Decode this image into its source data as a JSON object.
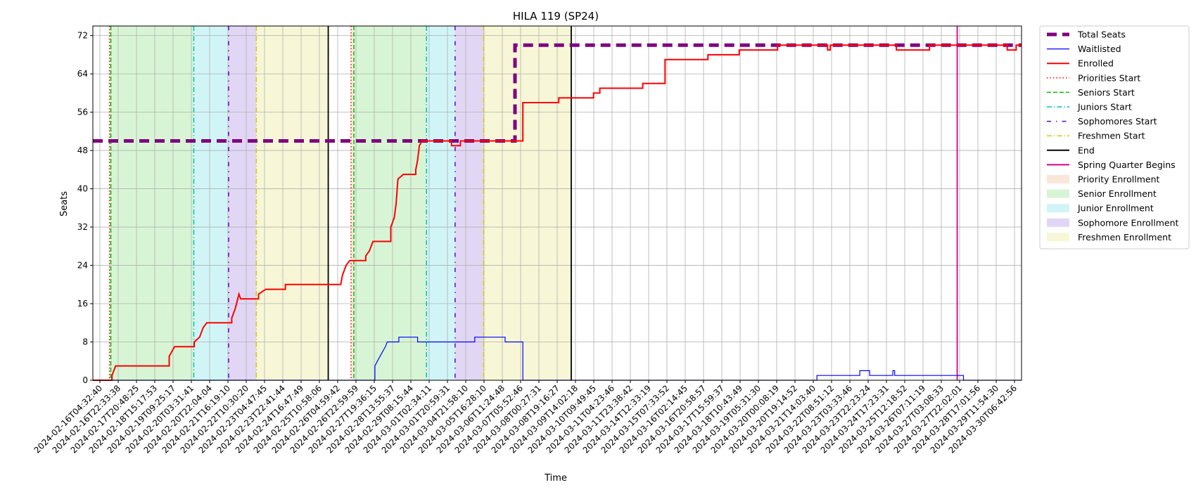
{
  "chart_data": {
    "type": "line",
    "title": "HILA 119 (SP24)",
    "xlabel": "Time",
    "ylabel": "Seats",
    "ylim": [
      0,
      74
    ],
    "yticks": [
      0,
      8,
      16,
      24,
      32,
      40,
      48,
      56,
      64,
      72
    ],
    "grid": true,
    "legend_position": "outside-right",
    "x_axis_start": "2024-02-16T04:32:40",
    "x_axis_end": "2024-03-30T12:00:00",
    "x_tick_labels": [
      "2024-02-16T04:32:40",
      "2024-02-16T22:33:38",
      "2024-02-17T20:48:25",
      "2024-02-18T15:17:53",
      "2024-02-19T09:25:17",
      "2024-02-20T03:31:41",
      "2024-02-20T22:04:04",
      "2024-02-21T16:19:10",
      "2024-02-22T10:30:20",
      "2024-02-23T04:47:45",
      "2024-02-23T22:41:44",
      "2024-02-24T16:47:49",
      "2024-02-25T10:58:06",
      "2024-02-26T04:59:42",
      "2024-02-26T22:59:59",
      "2024-02-27T19:36:15",
      "2024-02-28T13:55:37",
      "2024-02-29T08:15:44",
      "2024-03-01T02:34:11",
      "2024-03-01T20:59:31",
      "2024-03-04T21:58:10",
      "2024-03-05T16:28:10",
      "2024-03-06T11:24:48",
      "2024-03-07T05:52:46",
      "2024-03-08T00:27:31",
      "2024-03-08T19:16:27",
      "2024-03-09T14:02:18",
      "2024-03-10T09:49:45",
      "2024-03-11T04:23:46",
      "2024-03-11T23:38:42",
      "2024-03-14T12:33:19",
      "2024-03-15T07:33:52",
      "2024-03-16T02:14:45",
      "2024-03-16T20:58:57",
      "2024-03-17T15:59:37",
      "2024-03-18T10:43:49",
      "2024-03-19T05:31:30",
      "2024-03-20T00:08:19",
      "2024-03-20T19:14:52",
      "2024-03-21T14:03:40",
      "2024-03-22T08:51:12",
      "2024-03-23T03:33:46",
      "2024-03-23T22:23:24",
      "2024-03-24T17:23:31",
      "2024-03-25T12:18:52",
      "2024-03-26T07:11:19",
      "2024-03-27T03:08:33",
      "2024-03-27T22:02:01",
      "2024-03-28T17:01:56",
      "2024-03-29T11:54:30",
      "2024-03-30T06:42:56"
    ],
    "series": [
      {
        "name": "Total Seats",
        "color": "#800080",
        "style": "dashed-thick",
        "points": [
          [
            "2024-02-16T04:32:40",
            50
          ],
          [
            "2024-03-06T21:00:00",
            50
          ],
          [
            "2024-03-06T21:00:00",
            70
          ],
          [
            "2024-03-30T12:00:00",
            70
          ]
        ]
      },
      {
        "name": "Waitlisted",
        "color": "#0000ff",
        "style": "solid-thin",
        "points": [
          [
            "2024-02-16T04:32:40",
            0
          ],
          [
            "2024-02-29T08:15:44",
            0
          ],
          [
            "2024-02-29T08:15:44",
            3
          ],
          [
            "2024-02-29T11:00:00",
            4
          ],
          [
            "2024-02-29T14:00:00",
            5
          ],
          [
            "2024-02-29T17:00:00",
            6
          ],
          [
            "2024-02-29T20:00:00",
            7
          ],
          [
            "2024-02-29T22:00:00",
            8
          ],
          [
            "2024-03-01T11:00:00",
            8
          ],
          [
            "2024-03-01T11:00:00",
            9
          ],
          [
            "2024-03-02T08:00:00",
            9
          ],
          [
            "2024-03-02T08:00:00",
            8
          ],
          [
            "2024-03-05T00:00:00",
            8
          ],
          [
            "2024-03-05T00:00:00",
            9
          ],
          [
            "2024-03-06T10:00:00",
            9
          ],
          [
            "2024-03-06T10:00:00",
            8
          ],
          [
            "2024-03-07T05:52:46",
            8
          ],
          [
            "2024-03-07T05:52:46",
            0
          ],
          [
            "2024-03-20T23:00:00",
            0
          ],
          [
            "2024-03-20T23:00:00",
            1
          ],
          [
            "2024-03-22T23:00:00",
            1
          ],
          [
            "2024-03-22T23:00:00",
            2
          ],
          [
            "2024-03-23T10:00:00",
            2
          ],
          [
            "2024-03-23T10:00:00",
            1
          ],
          [
            "2024-03-24T12:00:00",
            1
          ],
          [
            "2024-03-24T12:00:00",
            2
          ],
          [
            "2024-03-24T14:00:00",
            2
          ],
          [
            "2024-03-24T14:00:00",
            1
          ],
          [
            "2024-03-27T19:00:00",
            1
          ],
          [
            "2024-03-27T19:00:00",
            0
          ],
          [
            "2024-03-30T12:00:00",
            0
          ]
        ]
      },
      {
        "name": "Enrolled",
        "color": "#ff0000",
        "style": "solid",
        "points": [
          [
            "2024-02-16T04:32:40",
            0
          ],
          [
            "2024-02-17T02:00:00",
            0
          ],
          [
            "2024-02-17T02:00:00",
            1
          ],
          [
            "2024-02-17T04:00:00",
            2
          ],
          [
            "2024-02-17T06:00:00",
            3
          ],
          [
            "2024-02-19T18:00:00",
            3
          ],
          [
            "2024-02-19T18:00:00",
            5
          ],
          [
            "2024-02-19T21:00:00",
            6
          ],
          [
            "2024-02-20T00:00:00",
            7
          ],
          [
            "2024-02-20T22:04:04",
            7
          ],
          [
            "2024-02-20T22:04:04",
            8
          ],
          [
            "2024-02-21T04:00:00",
            9
          ],
          [
            "2024-02-21T08:00:00",
            11
          ],
          [
            "2024-02-21T12:00:00",
            12
          ],
          [
            "2024-02-22T16:00:00",
            12
          ],
          [
            "2024-02-22T16:00:00",
            13
          ],
          [
            "2024-02-22T20:00:00",
            15
          ],
          [
            "2024-02-23T00:00:00",
            18
          ],
          [
            "2024-02-23T02:00:00",
            17
          ],
          [
            "2024-02-23T22:00:00",
            17
          ],
          [
            "2024-02-23T22:00:00",
            18
          ],
          [
            "2024-02-24T06:00:00",
            19
          ],
          [
            "2024-02-25T04:00:00",
            19
          ],
          [
            "2024-02-25T04:00:00",
            20
          ],
          [
            "2024-02-27T18:00:00",
            20
          ],
          [
            "2024-02-27T20:00:00",
            22
          ],
          [
            "2024-02-28T00:00:00",
            24
          ],
          [
            "2024-02-28T04:00:00",
            25
          ],
          [
            "2024-02-28T22:00:00",
            25
          ],
          [
            "2024-02-28T22:00:00",
            26
          ],
          [
            "2024-02-29T02:00:00",
            27
          ],
          [
            "2024-02-29T06:00:00",
            29
          ],
          [
            "2024-03-01T02:00:00",
            29
          ],
          [
            "2024-03-01T02:00:00",
            32
          ],
          [
            "2024-03-01T06:00:00",
            34
          ],
          [
            "2024-03-01T08:00:00",
            37
          ],
          [
            "2024-03-01T10:00:00",
            42
          ],
          [
            "2024-03-01T16:00:00",
            43
          ],
          [
            "2024-03-02T06:00:00",
            43
          ],
          [
            "2024-03-02T06:00:00",
            44
          ],
          [
            "2024-03-02T08:00:00",
            46
          ],
          [
            "2024-03-02T10:00:00",
            49
          ],
          [
            "2024-03-02T13:00:00",
            50
          ],
          [
            "2024-03-03T22:00:00",
            50
          ],
          [
            "2024-03-03T22:00:00",
            49
          ],
          [
            "2024-03-04T08:00:00",
            49
          ],
          [
            "2024-03-04T08:00:00",
            50
          ],
          [
            "2024-03-07T05:52:46",
            50
          ],
          [
            "2024-03-07T05:52:46",
            58
          ],
          [
            "2024-03-08T22:00:00",
            58
          ],
          [
            "2024-03-08T22:00:00",
            59
          ],
          [
            "2024-03-10T13:00:00",
            59
          ],
          [
            "2024-03-10T13:00:00",
            60
          ],
          [
            "2024-03-10T20:00:00",
            60
          ],
          [
            "2024-03-10T20:00:00",
            61
          ],
          [
            "2024-03-12T20:00:00",
            61
          ],
          [
            "2024-03-12T20:00:00",
            62
          ],
          [
            "2024-03-13T21:00:00",
            62
          ],
          [
            "2024-03-13T21:00:00",
            67
          ],
          [
            "2024-03-15T21:00:00",
            67
          ],
          [
            "2024-03-15T21:00:00",
            68
          ],
          [
            "2024-03-17T08:00:00",
            68
          ],
          [
            "2024-03-17T08:00:00",
            69
          ],
          [
            "2024-03-19T03:00:00",
            69
          ],
          [
            "2024-03-19T03:00:00",
            70
          ],
          [
            "2024-03-21T11:00:00",
            70
          ],
          [
            "2024-03-21T11:00:00",
            69
          ],
          [
            "2024-03-21T14:00:00",
            69
          ],
          [
            "2024-03-21T14:00:00",
            70
          ],
          [
            "2024-03-24T16:00:00",
            70
          ],
          [
            "2024-03-24T16:00:00",
            69
          ],
          [
            "2024-03-26T05:00:00",
            69
          ],
          [
            "2024-03-26T05:00:00",
            70
          ],
          [
            "2024-03-29T20:00:00",
            70
          ],
          [
            "2024-03-29T20:00:00",
            69
          ],
          [
            "2024-03-30T06:00:00",
            69
          ],
          [
            "2024-03-30T06:00:00",
            70
          ],
          [
            "2024-03-30T12:00:00",
            70
          ]
        ]
      }
    ],
    "shaded_regions": [
      {
        "name": "Priority Enrollment",
        "color": "#f4cfb6",
        "start": "2024-02-16T23:10:00",
        "end": "2024-02-17T00:40:00"
      },
      {
        "name": "Senior Enrollment",
        "color": "#b0ecaa",
        "start": "2024-02-17T00:40:00",
        "end": "2024-02-20T21:30:00"
      },
      {
        "name": "Junior Enrollment",
        "color": "#a4ecf0",
        "start": "2024-02-20T21:30:00",
        "end": "2024-02-22T12:30:00"
      },
      {
        "name": "Sophomore Enrollment",
        "color": "#c4b0ec",
        "start": "2024-02-22T12:30:00",
        "end": "2024-02-23T19:30:00"
      },
      {
        "name": "Freshmen Enrollment",
        "color": "#f0f0b0",
        "start": "2024-02-23T19:30:00",
        "end": "2024-02-27T04:00:00"
      },
      {
        "name": "Priority Enrollment",
        "color": "#f4cfb6",
        "start": "2024-02-28T05:30:00",
        "end": "2024-02-28T08:40:00"
      },
      {
        "name": "Senior Enrollment",
        "color": "#b0ecaa",
        "start": "2024-02-28T08:40:00",
        "end": "2024-03-02T18:00:00"
      },
      {
        "name": "Junior Enrollment",
        "color": "#a4ecf0",
        "start": "2024-03-02T18:00:00",
        "end": "2024-03-04T02:00:00"
      },
      {
        "name": "Sophomore Enrollment",
        "color": "#c4b0ec",
        "start": "2024-03-04T02:00:00",
        "end": "2024-03-05T10:00:00"
      },
      {
        "name": "Freshmen Enrollment",
        "color": "#f0f0b0",
        "start": "2024-03-05T10:00:00",
        "end": "2024-03-09T12:00:00"
      }
    ],
    "vertical_markers": [
      {
        "name": "Priorities Start",
        "color": "#ff0000",
        "style": "dotted",
        "x": [
          "2024-02-16T23:10:00",
          "2024-02-28T05:30:00"
        ]
      },
      {
        "name": "Seniors Start",
        "color": "#00c000",
        "style": "dashed",
        "x": [
          "2024-02-17T00:40:00",
          "2024-02-28T08:40:00"
        ]
      },
      {
        "name": "Juniors Start",
        "color": "#00c0c0",
        "style": "dashdot",
        "x": [
          "2024-02-20T21:30:00",
          "2024-03-02T18:00:00"
        ]
      },
      {
        "name": "Sophomores Start",
        "color": "#6a00d0",
        "style": "loosedashdot",
        "x": [
          "2024-02-22T12:30:00",
          "2024-03-04T02:00:00"
        ]
      },
      {
        "name": "Freshmen Start",
        "color": "#d8c800",
        "style": "dashdot",
        "x": [
          "2024-02-23T19:30:00",
          "2024-03-05T10:00:00"
        ]
      },
      {
        "name": "End",
        "color": "#000000",
        "style": "solid",
        "x": [
          "2024-02-27T04:00:00",
          "2024-03-09T12:00:00"
        ]
      },
      {
        "name": "Spring Quarter Begins",
        "color": "#d4008a",
        "style": "solid",
        "x": [
          "2024-03-27T12:00:00"
        ]
      }
    ],
    "legend": [
      {
        "label": "Total Seats",
        "kind": "line",
        "color": "#800080",
        "style": "dashed-thick"
      },
      {
        "label": "Waitlisted",
        "kind": "line",
        "color": "#0000ff",
        "style": "solid-thin"
      },
      {
        "label": "Enrolled",
        "kind": "line",
        "color": "#ff0000",
        "style": "solid"
      },
      {
        "label": "Priorities Start",
        "kind": "line",
        "color": "#ff0000",
        "style": "dotted"
      },
      {
        "label": "Seniors Start",
        "kind": "line",
        "color": "#00c000",
        "style": "dashed"
      },
      {
        "label": "Juniors Start",
        "kind": "line",
        "color": "#00c0c0",
        "style": "dashdot"
      },
      {
        "label": "Sophomores Start",
        "kind": "line",
        "color": "#6a00d0",
        "style": "loosedashdot"
      },
      {
        "label": "Freshmen Start",
        "kind": "line",
        "color": "#d8c800",
        "style": "dashdot"
      },
      {
        "label": "End",
        "kind": "line",
        "color": "#000000",
        "style": "solid"
      },
      {
        "label": "Spring Quarter Begins",
        "kind": "line",
        "color": "#d4008a",
        "style": "solid"
      },
      {
        "label": "Priority Enrollment",
        "kind": "patch",
        "color": "#f4cfb6"
      },
      {
        "label": "Senior Enrollment",
        "kind": "patch",
        "color": "#b0ecaa"
      },
      {
        "label": "Junior Enrollment",
        "kind": "patch",
        "color": "#a4ecf0"
      },
      {
        "label": "Sophomore Enrollment",
        "kind": "patch",
        "color": "#c4b0ec"
      },
      {
        "label": "Freshmen Enrollment",
        "kind": "patch",
        "color": "#f0f0b0"
      }
    ]
  }
}
